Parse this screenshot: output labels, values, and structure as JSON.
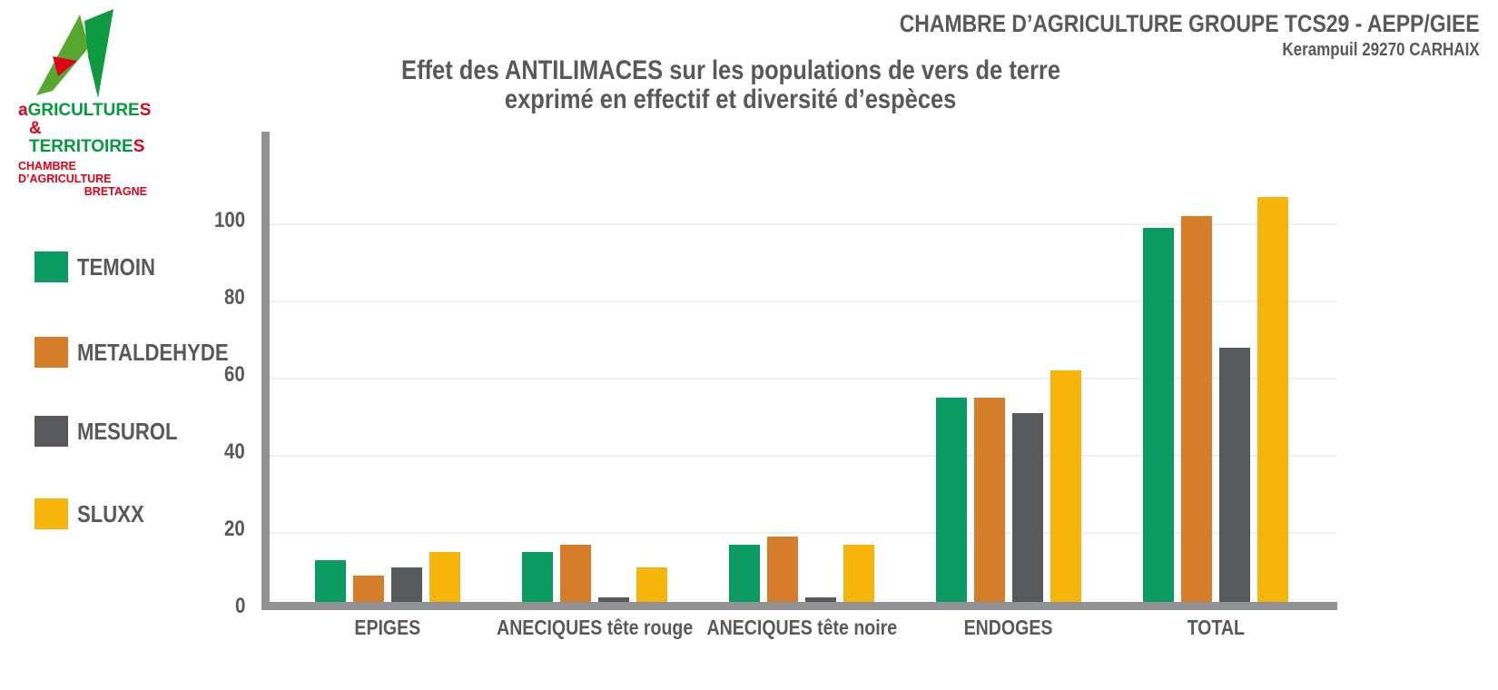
{
  "header": {
    "line1": "CHAMBRE D’AGRICULTURE GROUPE TCS29 - AEPP/GIEE",
    "line2": "Kerampuil 29270 CARHAIX"
  },
  "logo": {
    "line1": {
      "prefix": "a",
      "main": "GRICULTURE",
      "suffix": "S"
    },
    "line2": {
      "prefix": "& ",
      "main": "TERRITOIRE",
      "suffix": "S"
    },
    "line3": "CHAMBRE D’AGRICULTURE",
    "line4": "BRETAGNE",
    "colors": {
      "mark_green_light": "#55a82d",
      "mark_green_dark": "#0d9a40",
      "mark_red": "#e2001a",
      "text_green": "#009b3d",
      "text_red": "#e2001a"
    }
  },
  "chart_data": {
    "type": "bar",
    "title_line1": "Effet des ANTILIMACES sur les populations de vers de terre",
    "title_line2": "exprimé en effectif et diversité d’espèces",
    "categories": [
      "EPIGES",
      "ANECIQUES tête rouge",
      "ANECIQUES tête noire",
      "ENDOGES",
      "TOTAL"
    ],
    "series": [
      {
        "name": "TEMOIN",
        "color": "#0a9b63",
        "values": [
          13,
          15,
          17,
          55,
          99
        ]
      },
      {
        "name": "METALDEHYDE",
        "color": "#d57d28",
        "values": [
          9,
          17,
          19,
          55,
          102
        ]
      },
      {
        "name": "MESUROL",
        "color": "#57595c",
        "values": [
          11,
          3,
          3,
          51,
          68
        ]
      },
      {
        "name": "SLUXX",
        "color": "#f7b40a",
        "values": [
          15,
          11,
          17,
          62,
          107
        ]
      }
    ],
    "y_ticks": [
      0,
      20,
      40,
      60,
      80,
      100
    ],
    "ylim": [
      0,
      110
    ],
    "xlabel": "",
    "ylabel": "",
    "grid": true,
    "legend_position": "left",
    "colors": {
      "axis": "#8f9193",
      "gridline": "#f0f0f1",
      "text": "#58595b"
    }
  }
}
